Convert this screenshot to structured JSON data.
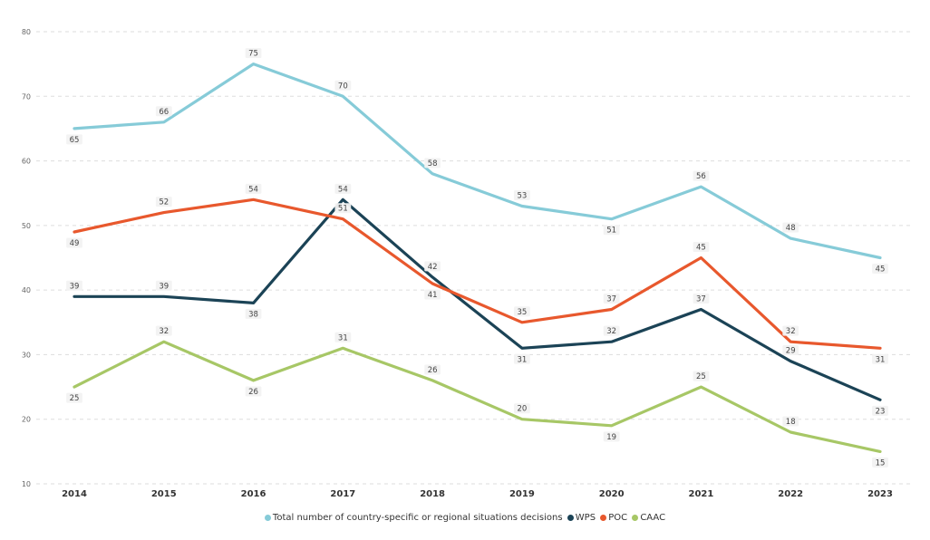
{
  "chart_data": {
    "type": "line",
    "title": "",
    "xlabel": "",
    "ylabel": "",
    "ylim": [
      10,
      80
    ],
    "yticks": [
      "10",
      "20",
      "30",
      "40",
      "50",
      "60",
      "70",
      "80"
    ],
    "grid": true,
    "legend_position": "bottom-center",
    "categories": [
      "2014",
      "2015",
      "2016",
      "2017",
      "2018",
      "2019",
      "2020",
      "2021",
      "2022",
      "2023"
    ],
    "series": [
      {
        "name": "Total number of country-specific or regional situations decisions",
        "color": "#86cbd8",
        "values": [
          65,
          66,
          75,
          70,
          58,
          53,
          51,
          56,
          48,
          45
        ],
        "labels": [
          "65",
          "66",
          "75",
          "70",
          "58",
          "53",
          "51",
          "56",
          "48",
          "45"
        ],
        "label_side": [
          "below",
          "above",
          "above",
          "above",
          "above",
          "above",
          "below",
          "above",
          "above",
          "below"
        ]
      },
      {
        "name": "WPS",
        "color": "#1b4356",
        "values": [
          39,
          39,
          38,
          54,
          42,
          31,
          32,
          37,
          29,
          23
        ],
        "labels": [
          "39",
          "39",
          "38",
          "54",
          "42",
          "31",
          "32",
          "37",
          "29",
          "23"
        ],
        "label_side": [
          "above",
          "above",
          "below",
          "above",
          "above",
          "below",
          "above",
          "above",
          "above",
          "below"
        ]
      },
      {
        "name": "POC",
        "color": "#e8582d",
        "values": [
          49,
          52,
          54,
          51,
          41,
          35,
          37,
          45,
          32,
          31
        ],
        "labels": [
          "49",
          "52",
          "54",
          "51",
          "41",
          "35",
          "37",
          "45",
          "32",
          "31"
        ],
        "label_side": [
          "below",
          "above",
          "above",
          "above",
          "below",
          "above",
          "above",
          "above",
          "above",
          "below"
        ]
      },
      {
        "name": "CAAC",
        "color": "#a7c766",
        "values": [
          25,
          32,
          26,
          31,
          26,
          20,
          19,
          25,
          18,
          15
        ],
        "labels": [
          "25",
          "32",
          "26",
          "31",
          "26",
          "20",
          "19",
          "25",
          "18",
          "15"
        ],
        "label_side": [
          "below",
          "above",
          "below",
          "above",
          "above",
          "above",
          "below",
          "above",
          "above",
          "below"
        ]
      }
    ]
  }
}
